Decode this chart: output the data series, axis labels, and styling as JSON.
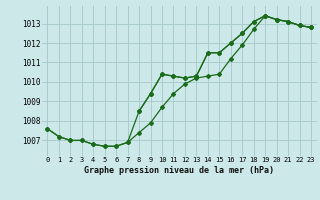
{
  "title": "Graphe pression niveau de la mer (hPa)",
  "bg_color": "#cce8e8",
  "grid_color": "#aacccc",
  "line_color": "#1a6b1a",
  "marker": "D",
  "markersize": 2.0,
  "linewidth": 0.9,
  "xlim": [
    -0.5,
    23.5
  ],
  "ylim": [
    1006.2,
    1013.9
  ],
  "yticks": [
    1007,
    1008,
    1009,
    1010,
    1011,
    1012,
    1013
  ],
  "xticks": [
    0,
    1,
    2,
    3,
    4,
    5,
    6,
    7,
    8,
    9,
    10,
    11,
    12,
    13,
    14,
    15,
    16,
    17,
    18,
    19,
    20,
    21,
    22,
    23
  ],
  "series1": [
    1007.6,
    1007.2,
    1007.0,
    1007.0,
    1006.8,
    1006.7,
    1006.7,
    1006.9,
    1008.5,
    1009.4,
    1010.4,
    1010.3,
    1010.2,
    1010.3,
    1011.5,
    1011.5,
    1012.0,
    1012.5,
    1013.1,
    1013.4,
    1013.2,
    1013.1,
    1012.9,
    1012.8
  ],
  "series2": [
    1007.6,
    1007.2,
    1007.0,
    1007.0,
    1006.8,
    1006.7,
    1006.7,
    1006.9,
    1007.4,
    1007.9,
    1008.7,
    1009.4,
    1009.9,
    1010.2,
    1010.3,
    1010.4,
    1011.2,
    1011.9,
    1012.7,
    1013.4,
    1013.2,
    1013.1,
    1012.9,
    1012.8
  ],
  "series3": [
    null,
    null,
    null,
    null,
    null,
    null,
    null,
    null,
    1008.5,
    1009.4,
    1010.4,
    1010.3,
    1010.2,
    1010.3,
    1011.5,
    1011.5,
    1012.0,
    1012.5,
    1013.1,
    1013.4,
    1013.2,
    1013.1,
    1012.9,
    1012.8
  ]
}
